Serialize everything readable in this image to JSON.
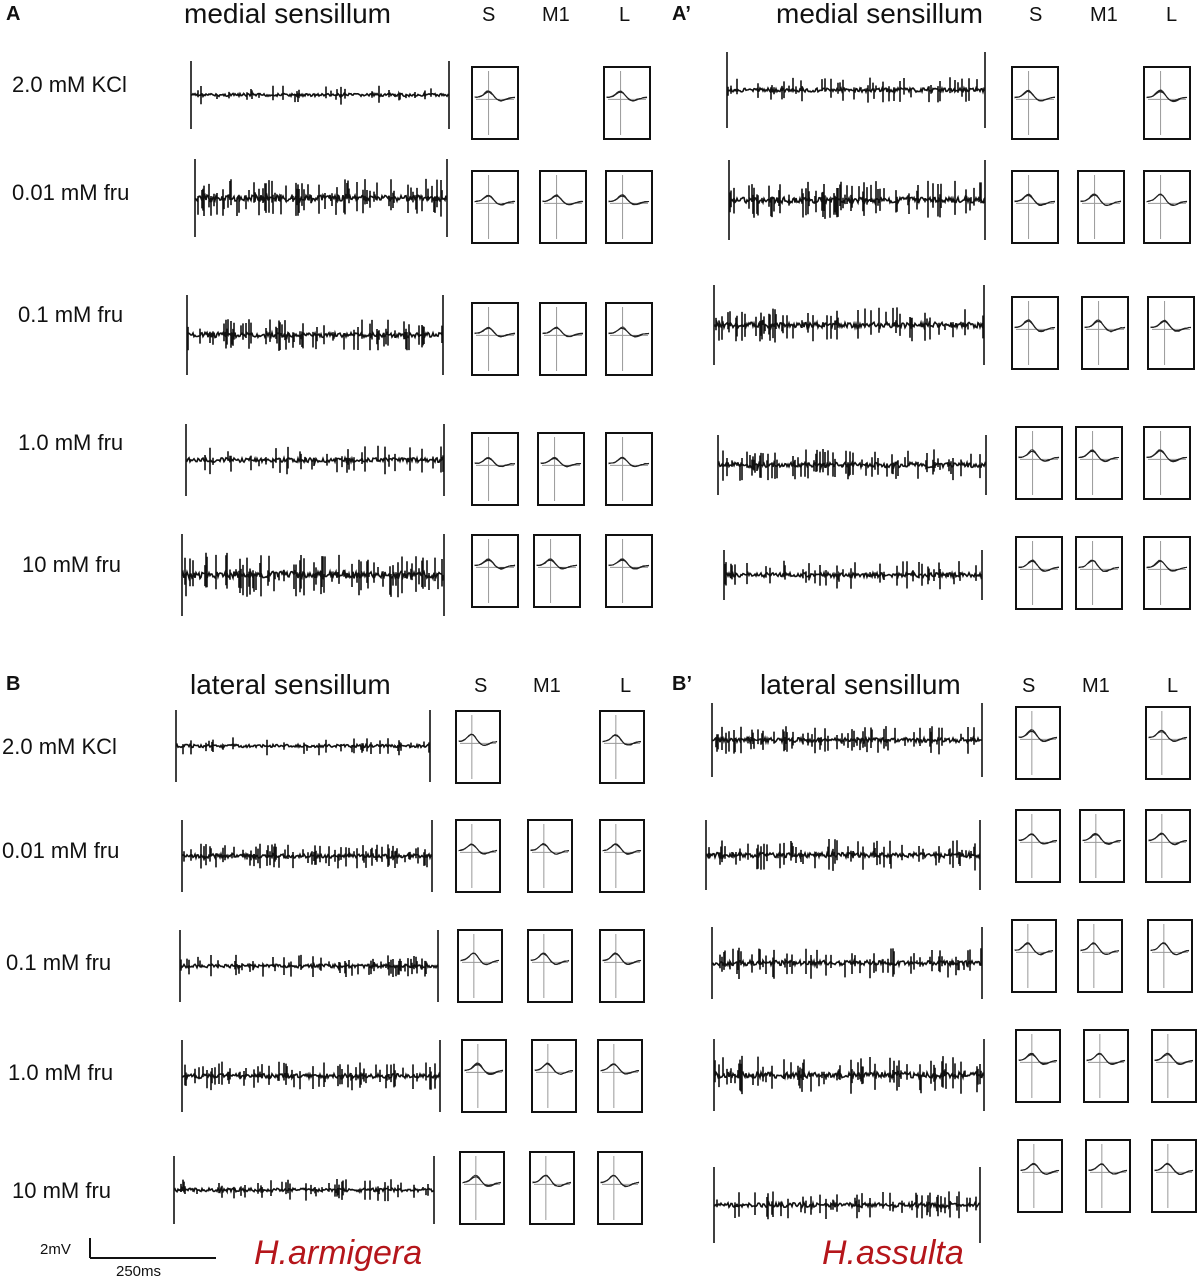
{
  "panels": [
    {
      "letter": "A",
      "title": "medial sensillum",
      "columns": [
        "S",
        "M1",
        "L"
      ]
    },
    {
      "letter": "A’",
      "title": "medial sensillum",
      "columns": [
        "S",
        "M1",
        "L"
      ]
    },
    {
      "letter": "B",
      "title": "lateral sensillum",
      "columns": [
        "S",
        "M1",
        "L"
      ]
    },
    {
      "letter": "B’",
      "title": "lateral sensillum",
      "columns": [
        "S",
        "M1",
        "L"
      ]
    }
  ],
  "concentrations": [
    "2.0 mM KCl",
    "0.01 mM fru",
    "0.1 mM fru",
    "1.0 mM fru",
    "10 mM fru"
  ],
  "species": [
    "H.armigera",
    "H.assulta"
  ],
  "scale": {
    "voltage": "2mV",
    "time": "250ms"
  }
}
